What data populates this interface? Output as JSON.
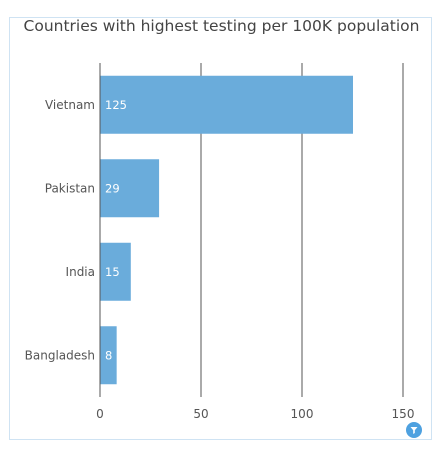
{
  "chart_data": {
    "type": "bar",
    "orientation": "horizontal",
    "title": "Countries with highest testing per 100K population",
    "categories": [
      "Vietnam",
      "Pakistan",
      "India",
      "Bangladesh"
    ],
    "values": [
      125,
      29,
      15,
      8
    ],
    "xlim": [
      0,
      150
    ],
    "x_ticks": [
      0,
      50,
      100,
      150
    ],
    "grid": true,
    "bar_color": "#6aacdb",
    "grid_color": "#555555"
  },
  "controls": {
    "filter_icon": "filter-icon"
  }
}
